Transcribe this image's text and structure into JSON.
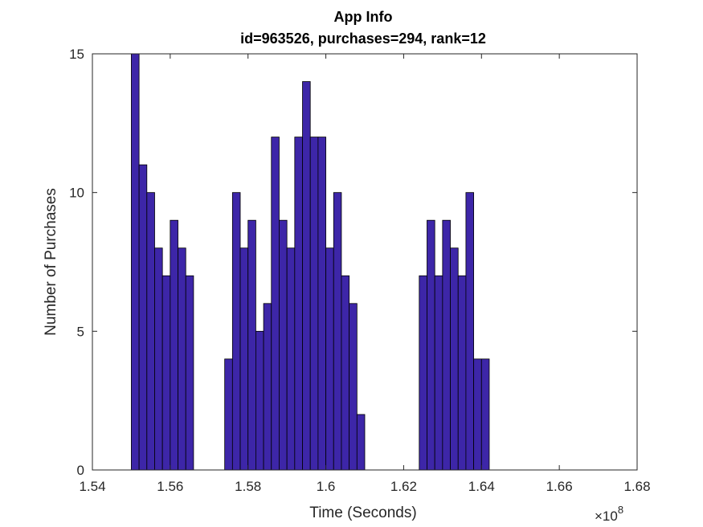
{
  "chart_data": {
    "type": "bar",
    "title": "App Info",
    "subtitle": "id=963526, purchases=294, rank=12",
    "xlabel": "Time (Seconds)",
    "ylabel": "Number of Purchases",
    "x_scale_exponent_label": "×10",
    "x_scale_exponent": "8",
    "xlim": [
      1.54,
      1.68
    ],
    "ylim": [
      0,
      15
    ],
    "xticks": [
      "1.54",
      "1.56",
      "1.58",
      "1.6",
      "1.62",
      "1.64",
      "1.66",
      "1.68"
    ],
    "yticks": [
      "0",
      "5",
      "10",
      "15"
    ],
    "grid": false,
    "bin_start": 1.55,
    "bin_width": 0.002,
    "bar_color": "#3d26a8",
    "edge_color": "#000000",
    "values": [
      15,
      11,
      10,
      8,
      7,
      9,
      8,
      7,
      0,
      0,
      0,
      0,
      4,
      10,
      8,
      9,
      5,
      6,
      12,
      9,
      8,
      12,
      14,
      12,
      12,
      8,
      10,
      7,
      6,
      2,
      0,
      0,
      0,
      0,
      0,
      0,
      0,
      7,
      9,
      7,
      9,
      8,
      7,
      10,
      4,
      4
    ]
  }
}
